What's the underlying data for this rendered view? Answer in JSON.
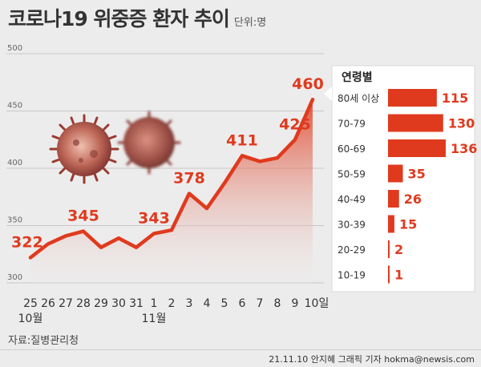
{
  "header": {
    "title": "코로나19 위중증 환자 추이",
    "unit": "단위:명"
  },
  "chart_data": [
    {
      "type": "area",
      "categories": [
        "25",
        "26",
        "27",
        "28",
        "29",
        "30",
        "31",
        "1",
        "2",
        "3",
        "4",
        "5",
        "6",
        "7",
        "8",
        "9",
        "10일"
      ],
      "month_labels": [
        {
          "text": "10월",
          "category_index": 0
        },
        {
          "text": "11월",
          "category_index": 7
        }
      ],
      "series": [
        {
          "values": [
            322,
            334,
            341,
            345,
            331,
            339,
            331,
            343,
            346,
            378,
            365,
            387,
            411,
            406,
            409,
            425,
            460
          ]
        }
      ],
      "data_labels": [
        {
          "index": 0,
          "text": "322"
        },
        {
          "index": 3,
          "text": "345"
        },
        {
          "index": 7,
          "text": "343"
        },
        {
          "index": 9,
          "text": "378"
        },
        {
          "index": 12,
          "text": "411"
        },
        {
          "index": 15,
          "text": "425"
        },
        {
          "index": 16,
          "text": "460"
        }
      ],
      "yticks": [
        "300",
        "350",
        "400",
        "450",
        "500"
      ],
      "ylim": [
        300,
        500
      ],
      "grid": true,
      "color": "#e03a1e"
    },
    {
      "type": "bar",
      "title": "연령별",
      "categories": [
        "80세 이상",
        "70-79",
        "60-69",
        "50-59",
        "40-49",
        "30-39",
        "20-29",
        "10-19"
      ],
      "values": [
        115,
        130,
        136,
        35,
        26,
        15,
        2,
        1
      ],
      "color": "#e03a1e"
    }
  ],
  "source": "자료:질병관리청",
  "credit": "21.11.10 안지혜 그래픽 기자 hokma@newsis.com"
}
